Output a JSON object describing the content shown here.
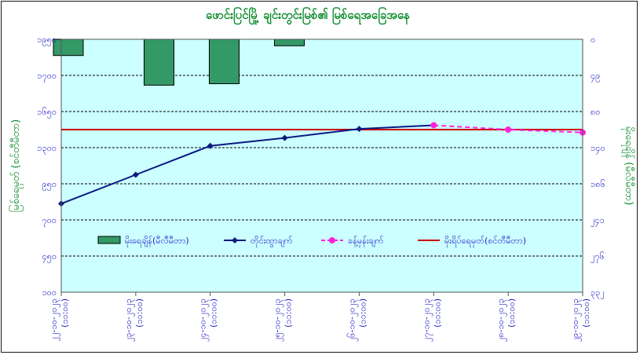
{
  "chart_data": {
    "type": "bar+line",
    "title": "ဖောင်းပြင်မြို့ ချင်းတွင်းမြစ်၏ မြစ်ရေအခြေအနေ",
    "left_axis_label": "မြစ်ရေမှတ် (စင်တီမီတာ)",
    "right_axis_label": "မိုးရေချိန် (မီလီမီတာ)",
    "left_ticks": [
      "၁၉၅၀",
      "၁၇၀၀",
      "၁၆၅၀",
      "၁၃၀၀",
      "၉၅၀",
      "၇၀၀",
      "၄၅၀",
      "၁၀၀"
    ],
    "right_ticks": [
      "၀",
      "၄၉",
      "၈၀",
      "၁၄၀",
      "၁၈၆",
      "၂၄၁",
      "၂၇၆",
      "၃၃၂"
    ],
    "x_ticks": [
      [
        "၂၂-၁၀-၂၀၂၃",
        "(၁၁:၀၀)"
      ],
      [
        "၂၃-၁၀-၂၀၂၃",
        "(၁၁:၀၀)"
      ],
      [
        "၂၄-၁၀-၂၀၂၃",
        "(၁၁:၀၀)"
      ],
      [
        "၂၅-၁၀-၂၀၂၃",
        "(၁၁:၀၀)"
      ],
      [
        "၂၆-၁၀-၂၀၂၃",
        "(၁၁:၀၀)"
      ],
      [
        "၂၇-၁၀-၂၀၂၃",
        "(၁၁:၀၀)"
      ],
      [
        "၂၈-၁၀-၂၀၂၃",
        "(၁၁:၀၀)"
      ],
      [
        "၂၉-၁၀-၂၀၂၃",
        "(၁၁:၀၀)"
      ]
    ],
    "left_ylim": [
      0,
      7
    ],
    "right_ylim": [
      0,
      7
    ],
    "danger_level": 4.5,
    "series": [
      {
        "name": "မိုးရေချိန်(မီလီမီတာ)",
        "type": "bar",
        "color": "#339966",
        "values": [
          0.45,
          1.27,
          1.23,
          0.18,
          0,
          0,
          0,
          0
        ]
      },
      {
        "name": "တိုင်းထွာချက်",
        "type": "line",
        "color": "#0a1a80",
        "values": [
          2.45,
          3.25,
          4.05,
          4.27,
          4.52,
          4.62,
          null,
          null
        ]
      },
      {
        "name": "ခန့်မှန်းချက်",
        "type": "line-dashed",
        "color": "#ff22dd",
        "values": [
          null,
          null,
          null,
          null,
          null,
          4.62,
          4.5,
          4.42
        ]
      },
      {
        "name": "မိုးရိပ်ရေမှတ်(စင်တီမီတာ)",
        "type": "hline",
        "color": "#cc0000"
      }
    ]
  },
  "colors": {
    "plot_bg": "#ccffff",
    "bar": "#339966",
    "measured": "#0a1a80",
    "forecast": "#ff22dd",
    "danger": "#cc0000",
    "tick_text": "#1c1cc8",
    "title_text": "#0a8a2a"
  }
}
